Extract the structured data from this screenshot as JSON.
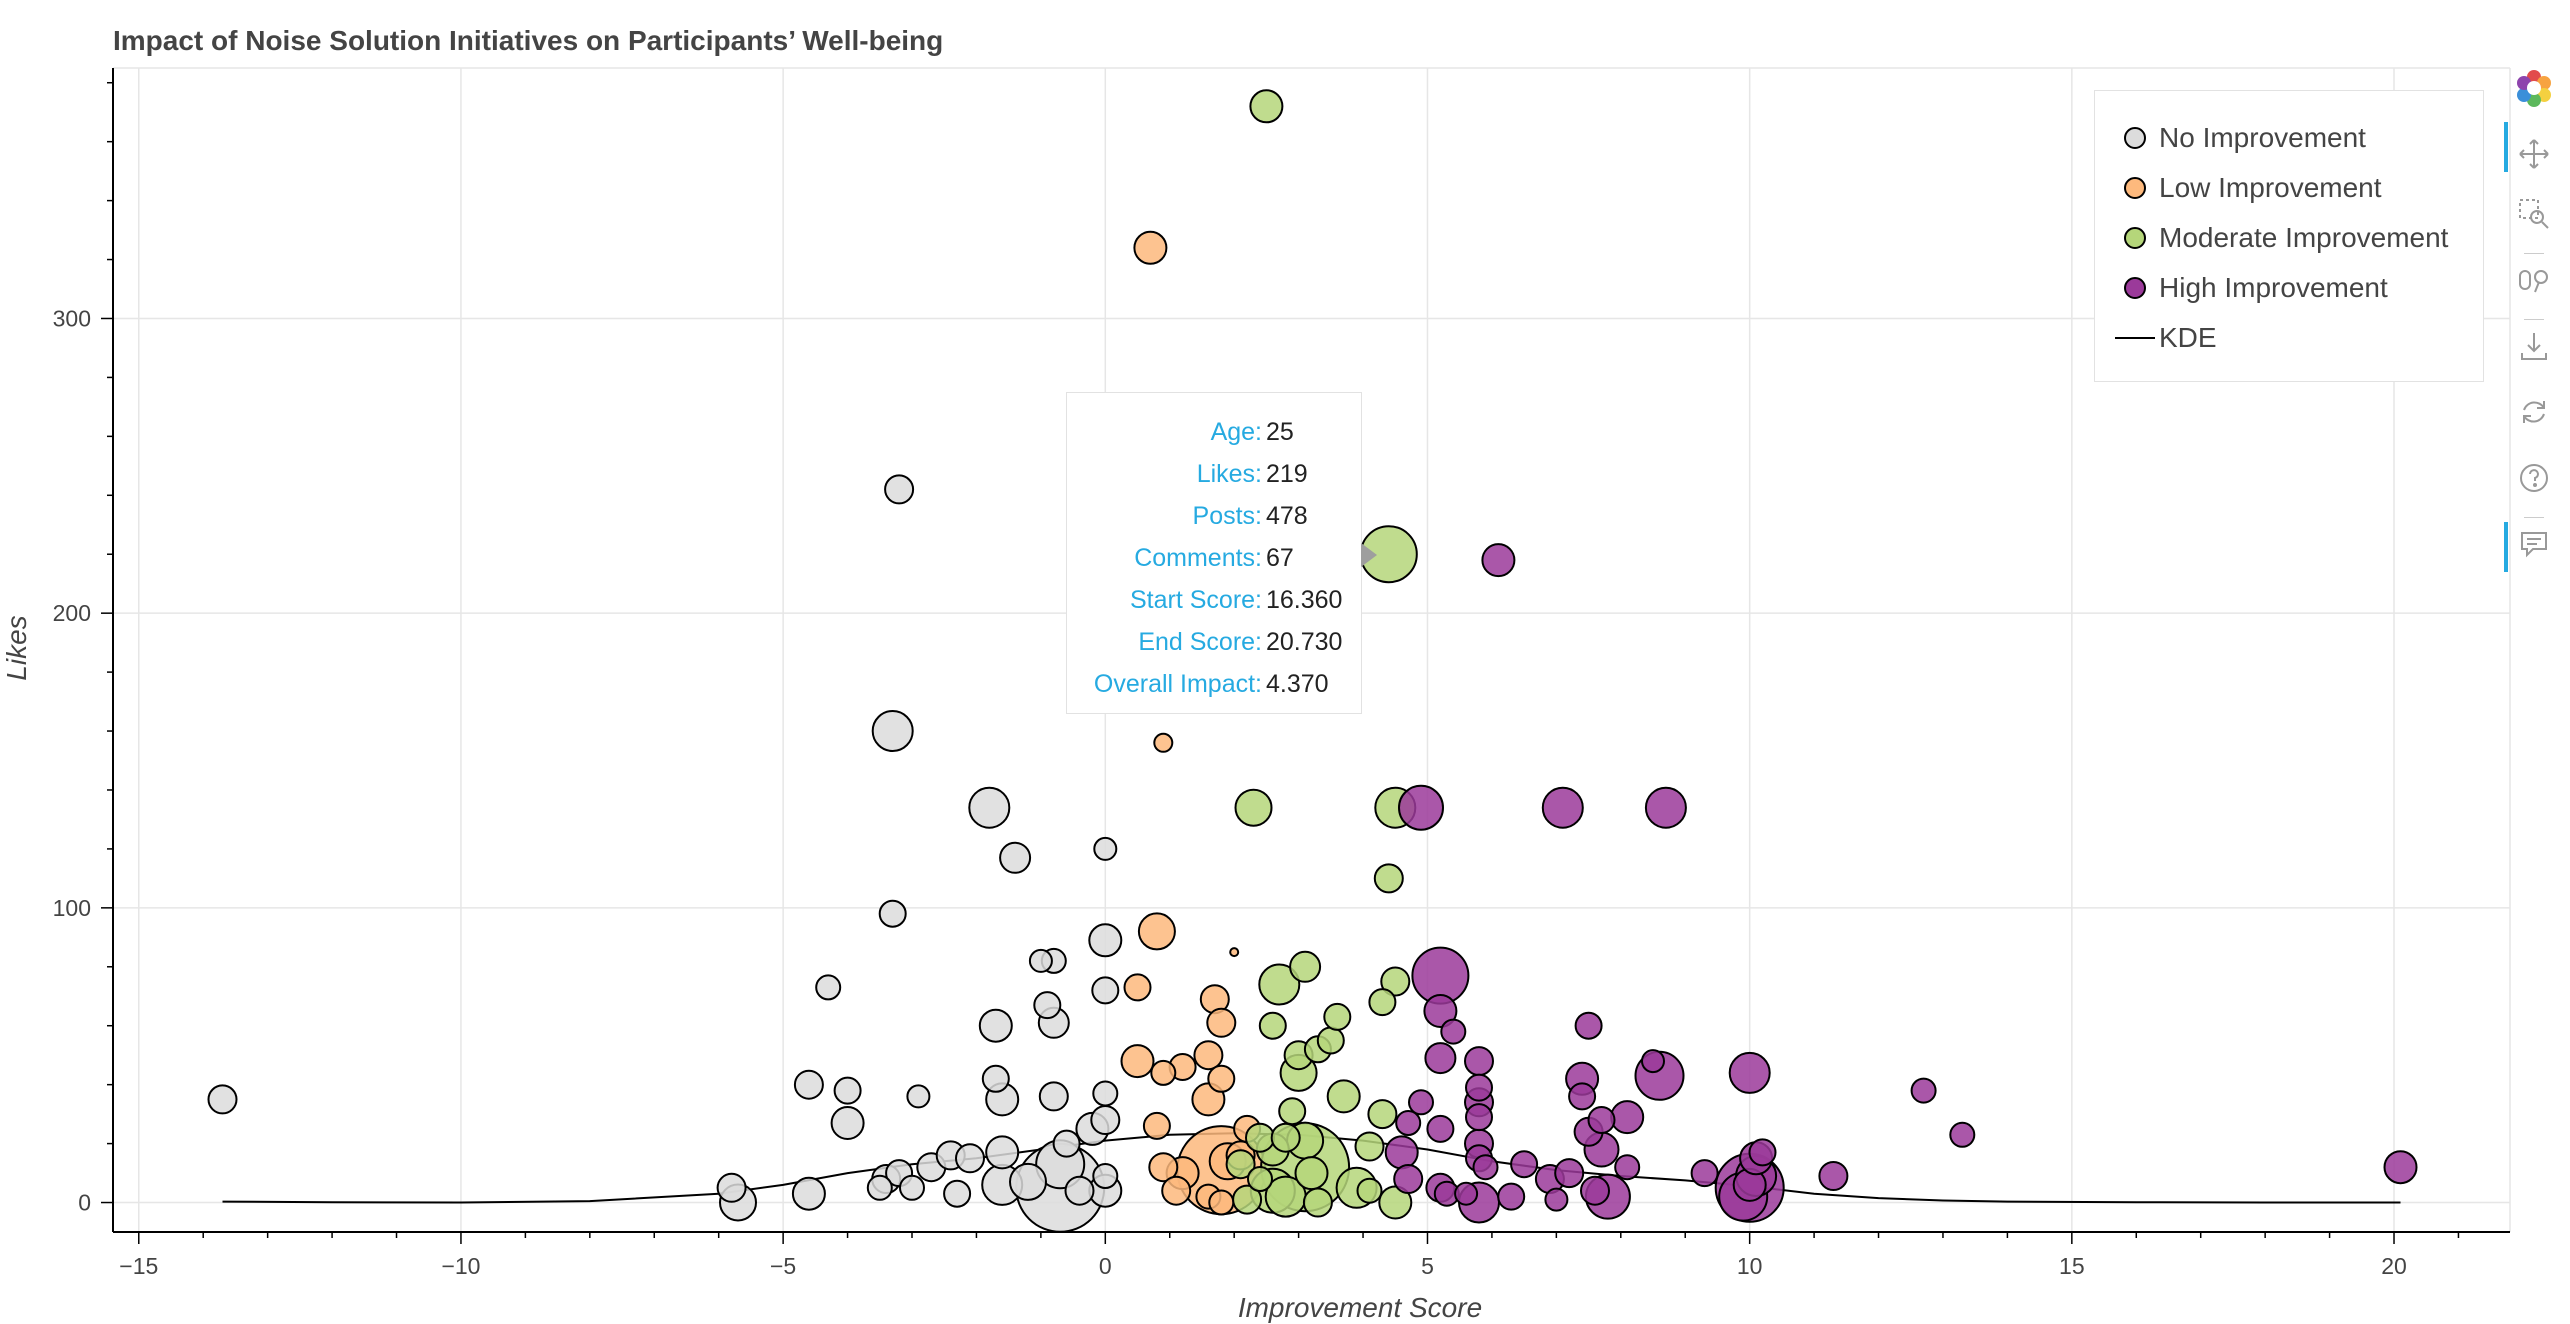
{
  "chart_data": {
    "type": "scatter",
    "title": "Impact of Noise Solution Initiatives on Participants’ Well-being",
    "xlabel": "Improvement Score",
    "ylabel": "Likes",
    "xlim": [
      -15.4,
      21.8
    ],
    "ylim": [
      -10,
      385
    ],
    "xticks": [
      -15,
      -10,
      -5,
      0,
      5,
      10,
      15,
      20
    ],
    "yticks": [
      0,
      100,
      200,
      300
    ],
    "xtick_labels": [
      "−15",
      "−10",
      "−5",
      "0",
      "5",
      "10",
      "15",
      "20"
    ],
    "ytick_labels": [
      "0",
      "100",
      "200",
      "300"
    ],
    "grid": true,
    "legend_position": "top-right",
    "series": [
      {
        "name": "No Improvement",
        "color": "#dcdcdc",
        "points": [
          [
            -13.7,
            35,
            14
          ],
          [
            -5.8,
            5,
            14
          ],
          [
            -5.7,
            0,
            18
          ],
          [
            -4.6,
            40,
            14
          ],
          [
            -4.6,
            3,
            16
          ],
          [
            -4.3,
            73,
            12
          ],
          [
            -4.0,
            38,
            13
          ],
          [
            -4.0,
            27,
            16
          ],
          [
            -3.5,
            5,
            12
          ],
          [
            -3.4,
            8,
            14
          ],
          [
            -3.3,
            160,
            20
          ],
          [
            -3.3,
            98,
            13
          ],
          [
            -3.2,
            242,
            14
          ],
          [
            -3.2,
            10,
            13
          ],
          [
            -3.0,
            5,
            12
          ],
          [
            -2.9,
            36,
            11
          ],
          [
            -2.7,
            12,
            14
          ],
          [
            -2.4,
            16,
            14
          ],
          [
            -2.3,
            3,
            13
          ],
          [
            -2.1,
            15,
            14
          ],
          [
            -1.8,
            134,
            20
          ],
          [
            -1.7,
            60,
            16
          ],
          [
            -1.7,
            42,
            13
          ],
          [
            -1.6,
            35,
            16
          ],
          [
            -1.6,
            17,
            16
          ],
          [
            -1.6,
            6,
            20
          ],
          [
            -1.4,
            117,
            15
          ],
          [
            -1.2,
            7,
            18
          ],
          [
            -1.0,
            82,
            11
          ],
          [
            -0.9,
            67,
            13
          ],
          [
            -0.8,
            61,
            15
          ],
          [
            -0.8,
            36,
            14
          ],
          [
            -0.8,
            82,
            12
          ],
          [
            -0.7,
            13,
            24
          ],
          [
            -0.7,
            5,
            44
          ],
          [
            -0.6,
            20,
            13
          ],
          [
            -0.4,
            4,
            14
          ],
          [
            -0.2,
            25,
            16
          ],
          [
            0.0,
            37,
            12
          ],
          [
            0.0,
            28,
            14
          ],
          [
            0.0,
            9,
            12
          ],
          [
            0.0,
            4,
            16
          ],
          [
            0.0,
            72,
            13
          ],
          [
            0.0,
            89,
            16
          ],
          [
            0.0,
            120,
            11
          ],
          [
            0.0,
            247,
            14
          ]
        ]
      },
      {
        "name": "Low Improvement",
        "color": "#fdb97d",
        "points": [
          [
            0.5,
            48,
            16
          ],
          [
            0.5,
            73,
            13
          ],
          [
            0.7,
            324,
            16
          ],
          [
            0.8,
            26,
            13
          ],
          [
            0.8,
            92,
            18
          ],
          [
            0.9,
            156,
            9
          ],
          [
            0.9,
            12,
            14
          ],
          [
            0.9,
            44,
            12
          ],
          [
            1.1,
            4,
            14
          ],
          [
            1.2,
            10,
            16
          ],
          [
            1.2,
            46,
            13
          ],
          [
            1.6,
            2,
            12
          ],
          [
            1.6,
            50,
            14
          ],
          [
            1.6,
            35,
            16
          ],
          [
            1.7,
            69,
            14
          ],
          [
            1.8,
            61,
            14
          ],
          [
            1.8,
            42,
            13
          ],
          [
            1.8,
            11,
            44
          ],
          [
            1.8,
            0,
            12
          ],
          [
            1.9,
            14,
            18
          ],
          [
            2.0,
            85,
            4
          ],
          [
            2.1,
            16,
            14
          ],
          [
            2.2,
            25,
            13
          ]
        ]
      },
      {
        "name": "Moderate Improvement",
        "color": "#b5d67a",
        "points": [
          [
            2.1,
            13,
            14
          ],
          [
            2.2,
            1,
            14
          ],
          [
            2.3,
            134,
            18
          ],
          [
            2.4,
            8,
            12
          ],
          [
            2.4,
            22,
            14
          ],
          [
            2.5,
            372,
            16
          ],
          [
            2.6,
            18,
            16
          ],
          [
            2.6,
            4,
            22
          ],
          [
            2.6,
            60,
            13
          ],
          [
            2.7,
            74,
            20
          ],
          [
            2.8,
            2,
            20
          ],
          [
            2.8,
            22,
            14
          ],
          [
            2.9,
            31,
            13
          ],
          [
            3.0,
            44,
            18
          ],
          [
            3.0,
            50,
            14
          ],
          [
            3.1,
            80,
            15
          ],
          [
            3.1,
            21,
            18
          ],
          [
            3.1,
            12,
            44
          ],
          [
            3.2,
            10,
            16
          ],
          [
            3.3,
            0,
            14
          ],
          [
            3.3,
            52,
            13
          ],
          [
            3.5,
            55,
            13
          ],
          [
            3.6,
            63,
            13
          ],
          [
            3.7,
            36,
            16
          ],
          [
            3.9,
            5,
            20
          ],
          [
            4.1,
            19,
            14
          ],
          [
            4.1,
            4,
            12
          ],
          [
            4.3,
            68,
            13
          ],
          [
            4.3,
            30,
            14
          ],
          [
            4.4,
            220,
            28
          ],
          [
            4.4,
            110,
            14
          ],
          [
            4.5,
            134,
            20
          ],
          [
            4.5,
            75,
            14
          ],
          [
            4.5,
            0,
            16
          ]
        ]
      },
      {
        "name": "High Improvement",
        "color": "#9b3a9a",
        "points": [
          [
            4.6,
            17,
            16
          ],
          [
            4.7,
            8,
            14
          ],
          [
            4.7,
            27,
            12
          ],
          [
            4.9,
            134,
            22
          ],
          [
            4.9,
            34,
            12
          ],
          [
            5.2,
            77,
            28
          ],
          [
            5.2,
            65,
            16
          ],
          [
            5.2,
            49,
            15
          ],
          [
            5.2,
            25,
            13
          ],
          [
            5.2,
            5,
            14
          ],
          [
            5.3,
            3,
            12
          ],
          [
            5.4,
            58,
            12
          ],
          [
            5.6,
            3,
            11
          ],
          [
            5.8,
            48,
            14
          ],
          [
            5.8,
            39,
            13
          ],
          [
            5.8,
            34,
            14
          ],
          [
            5.8,
            29,
            13
          ],
          [
            5.8,
            20,
            14
          ],
          [
            5.8,
            15,
            13
          ],
          [
            5.8,
            0,
            20
          ],
          [
            5.9,
            12,
            12
          ],
          [
            6.1,
            218,
            16
          ],
          [
            6.3,
            2,
            13
          ],
          [
            6.5,
            13,
            13
          ],
          [
            6.9,
            8,
            14
          ],
          [
            7.0,
            1,
            11
          ],
          [
            7.1,
            134,
            20
          ],
          [
            7.2,
            10,
            14
          ],
          [
            7.4,
            42,
            16
          ],
          [
            7.4,
            36,
            13
          ],
          [
            7.5,
            60,
            13
          ],
          [
            7.5,
            24,
            14
          ],
          [
            7.6,
            4,
            14
          ],
          [
            7.7,
            18,
            17
          ],
          [
            7.7,
            28,
            13
          ],
          [
            7.8,
            2,
            22
          ],
          [
            8.1,
            29,
            16
          ],
          [
            8.1,
            12,
            12
          ],
          [
            8.5,
            48,
            11
          ],
          [
            8.6,
            43,
            24
          ],
          [
            8.7,
            134,
            20
          ],
          [
            9.3,
            10,
            13
          ],
          [
            9.9,
            2,
            24
          ],
          [
            10.0,
            6,
            16
          ],
          [
            10.0,
            44,
            20
          ],
          [
            10.0,
            5,
            34
          ],
          [
            10.1,
            15,
            16
          ],
          [
            10.1,
            9,
            20
          ],
          [
            10.2,
            17,
            13
          ],
          [
            11.3,
            9,
            14
          ],
          [
            12.7,
            38,
            12
          ],
          [
            13.3,
            23,
            12
          ],
          [
            20.1,
            12,
            16
          ]
        ]
      }
    ],
    "kde": {
      "name": "KDE",
      "color": "#000000",
      "points": [
        [
          -13.7,
          0.3
        ],
        [
          -12,
          0.1
        ],
        [
          -10,
          0
        ],
        [
          -8,
          0.5
        ],
        [
          -6,
          3
        ],
        [
          -5,
          6
        ],
        [
          -4,
          10
        ],
        [
          -3,
          13
        ],
        [
          -2,
          15
        ],
        [
          -1,
          18
        ],
        [
          0,
          21
        ],
        [
          1,
          23
        ],
        [
          2,
          23.5
        ],
        [
          3,
          23
        ],
        [
          4,
          21
        ],
        [
          5,
          18
        ],
        [
          6,
          14
        ],
        [
          7,
          11
        ],
        [
          8,
          9
        ],
        [
          9,
          7.5
        ],
        [
          10,
          5.5
        ],
        [
          11,
          3
        ],
        [
          12,
          1.5
        ],
        [
          13,
          0.7
        ],
        [
          14,
          0.3
        ],
        [
          16,
          0.1
        ],
        [
          18,
          0
        ],
        [
          20.1,
          0
        ]
      ]
    }
  },
  "legend": {
    "items": [
      {
        "label": "No Improvement",
        "color": "#dcdcdc",
        "kind": "dot"
      },
      {
        "label": "Low Improvement",
        "color": "#fdb97d",
        "kind": "dot"
      },
      {
        "label": "Moderate Improvement",
        "color": "#b5d67a",
        "kind": "dot"
      },
      {
        "label": "High Improvement",
        "color": "#9b3a9a",
        "kind": "dot"
      },
      {
        "label": "KDE",
        "color": "#000000",
        "kind": "line"
      }
    ]
  },
  "tooltip": {
    "rows": [
      {
        "key": "Age:",
        "value": "25"
      },
      {
        "key": "Likes:",
        "value": "219"
      },
      {
        "key": "Posts:",
        "value": "478"
      },
      {
        "key": "Comments:",
        "value": "67"
      },
      {
        "key": "Start Score:",
        "value": "16.360"
      },
      {
        "key": "End Score:",
        "value": "20.730"
      },
      {
        "key": "Overall Impact:",
        "value": "4.370"
      }
    ]
  },
  "toolbar": {
    "tools": [
      "bokeh-logo-icon",
      "pan-icon",
      "box-zoom-icon",
      "wheel-zoom-icon",
      "save-icon",
      "reset-icon",
      "help-icon",
      "hover-icon"
    ]
  }
}
